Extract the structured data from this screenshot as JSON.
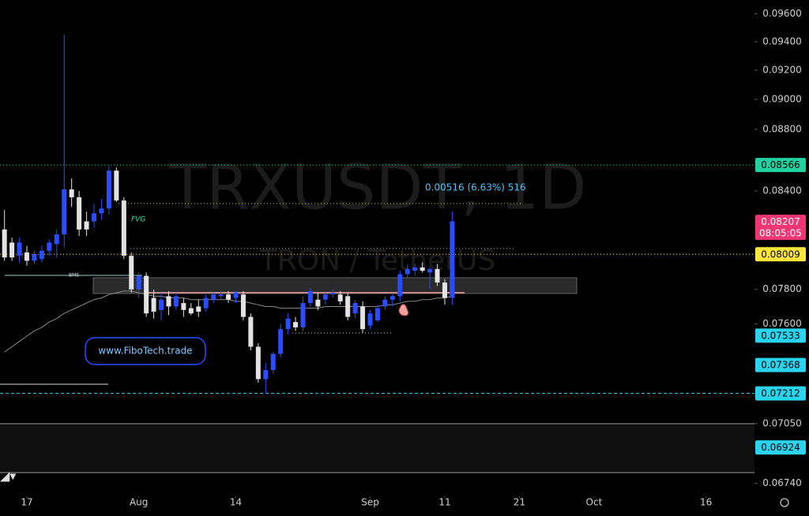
{
  "chart_data": {
    "type": "candlestick",
    "title": "TRXUSDT, 1D",
    "subtitle": "TRON / TetherUS",
    "log_scale": true,
    "grid": false,
    "up_color": "#2b4cff",
    "down_color": "#e3e3e3",
    "ylim": [
      0.0669,
      0.097
    ],
    "yticks": [
      {
        "value": 0.096,
        "label": "0.09600"
      },
      {
        "value": 0.094,
        "label": "0.09400"
      },
      {
        "value": 0.092,
        "label": "0.09200"
      },
      {
        "value": 0.09,
        "label": "0.09000"
      },
      {
        "value": 0.088,
        "label": "0.08800"
      },
      {
        "value": 0.084,
        "label": "0.08400"
      },
      {
        "value": 0.078,
        "label": "0.07800"
      },
      {
        "value": 0.076,
        "label": "0.07600"
      },
      {
        "value": 0.0705,
        "label": "0.07050"
      },
      {
        "value": 0.0674,
        "label": "0.06740"
      }
    ],
    "xlim": [
      -0.6,
      100.5
    ],
    "xticks": [
      {
        "value": 3,
        "label": "17"
      },
      {
        "value": 18,
        "label": "Aug"
      },
      {
        "value": 31,
        "label": "14"
      },
      {
        "value": 49,
        "label": "Sep"
      },
      {
        "value": 59,
        "label": "11"
      },
      {
        "value": 69,
        "label": "21"
      },
      {
        "value": 79,
        "label": "Oct"
      },
      {
        "value": 94,
        "label": "16"
      }
    ],
    "open": [
      0.0816,
      0.0808,
      0.08,
      0.0802,
      0.0797,
      0.0798,
      0.0803,
      0.0807,
      0.0813,
      0.0841,
      0.0836,
      0.0821,
      0.0821,
      0.0826,
      0.0829,
      0.0853,
      0.0834,
      0.08,
      0.078,
      0.0788,
      0.0775,
      0.0768,
      0.0776,
      0.077,
      0.0772,
      0.0769,
      0.077,
      0.0769,
      0.0774,
      0.0776,
      0.0777,
      0.0775,
      0.0777,
      0.0764,
      0.0747,
      0.0729,
      0.0734,
      0.0743,
      0.0757,
      0.0761,
      0.0758,
      0.0772,
      0.0774,
      0.0774,
      0.0777,
      0.0777,
      0.0776,
      0.0766,
      0.077,
      0.0759,
      0.0762,
      0.077,
      0.0774,
      0.0776,
      0.0789,
      0.0791,
      0.0793,
      0.079,
      0.0792,
      0.0784,
      0.0775
    ],
    "high": [
      0.0828,
      0.0811,
      0.0811,
      0.0806,
      0.0803,
      0.0806,
      0.081,
      0.0816,
      0.0945,
      0.0848,
      0.084,
      0.0827,
      0.0832,
      0.0835,
      0.0856,
      0.0855,
      0.0836,
      0.0802,
      0.079,
      0.079,
      0.078,
      0.0778,
      0.0779,
      0.0778,
      0.0775,
      0.0772,
      0.0774,
      0.0777,
      0.0778,
      0.0779,
      0.0779,
      0.0779,
      0.0779,
      0.0766,
      0.0749,
      0.0738,
      0.0744,
      0.076,
      0.0766,
      0.0764,
      0.0776,
      0.0781,
      0.0778,
      0.0778,
      0.078,
      0.0779,
      0.0778,
      0.0774,
      0.0773,
      0.0768,
      0.0771,
      0.0776,
      0.0777,
      0.0791,
      0.0795,
      0.0795,
      0.0796,
      0.0793,
      0.0795,
      0.0786,
      0.0827
    ],
    "low": [
      0.0797,
      0.0797,
      0.0796,
      0.0794,
      0.0795,
      0.0796,
      0.08,
      0.0799,
      0.0805,
      0.083,
      0.0812,
      0.0812,
      0.0817,
      0.0822,
      0.0825,
      0.0833,
      0.0798,
      0.0778,
      0.0775,
      0.0764,
      0.0763,
      0.0762,
      0.0765,
      0.0768,
      0.0764,
      0.0765,
      0.0764,
      0.0767,
      0.0772,
      0.0774,
      0.0772,
      0.0772,
      0.0762,
      0.0745,
      0.0727,
      0.0721,
      0.0732,
      0.0741,
      0.0754,
      0.0756,
      0.0756,
      0.077,
      0.0768,
      0.0771,
      0.0775,
      0.0771,
      0.0762,
      0.0763,
      0.0755,
      0.0757,
      0.0761,
      0.0768,
      0.077,
      0.0773,
      0.0787,
      0.0788,
      0.079,
      0.078,
      0.0782,
      0.0771,
      0.0771
    ],
    "close": [
      0.0799,
      0.0799,
      0.0808,
      0.0797,
      0.0801,
      0.0803,
      0.0808,
      0.0813,
      0.0841,
      0.0836,
      0.0816,
      0.0816,
      0.0826,
      0.0829,
      0.0853,
      0.0834,
      0.08,
      0.078,
      0.0788,
      0.0766,
      0.0767,
      0.0774,
      0.077,
      0.0776,
      0.0768,
      0.0766,
      0.0767,
      0.0775,
      0.0777,
      0.0777,
      0.0774,
      0.0778,
      0.0764,
      0.0747,
      0.0729,
      0.0734,
      0.0743,
      0.0757,
      0.0763,
      0.0758,
      0.0772,
      0.0779,
      0.077,
      0.0777,
      0.0778,
      0.0773,
      0.0764,
      0.0772,
      0.0757,
      0.0766,
      0.0769,
      0.0774,
      0.0776,
      0.0789,
      0.0792,
      0.0793,
      0.0791,
      0.0792,
      0.0784,
      0.0775,
      0.0821
    ],
    "overlays": [
      {
        "type": "line",
        "color": "#8a8a8a",
        "values": [
          0.0744,
          0.0747,
          0.075,
          0.0753,
          0.0756,
          0.0758,
          0.0761,
          0.0763,
          0.0766,
          0.0768,
          0.077,
          0.0772,
          0.0774,
          0.0775,
          0.0777,
          0.0778,
          0.0779,
          0.0779,
          0.0778,
          0.0777,
          0.0776,
          0.0776,
          0.0775,
          0.0775,
          0.0775,
          0.0774,
          0.0774,
          0.0774,
          0.0774,
          0.0774,
          0.0774,
          0.0773,
          0.0773,
          0.0772,
          0.0771,
          0.077,
          0.077,
          0.0769,
          0.0769,
          0.0769,
          0.0769,
          0.0769,
          0.0769,
          0.077,
          0.077,
          0.077,
          0.077,
          0.077,
          0.077,
          0.077,
          0.077,
          0.0771,
          0.0771,
          0.0772,
          0.0773,
          0.0773,
          0.0774,
          0.0774,
          0.0775,
          0.0775,
          0.0776
        ]
      }
    ],
    "levels": [
      {
        "value": 0.08566,
        "color": "#1fd3a0",
        "text_color": "#000",
        "line": "dotted"
      },
      {
        "value": 0.08207,
        "color": "#f23674",
        "text_color": "#fff",
        "countdown": "08:05:05"
      },
      {
        "value": 0.08009,
        "color": "#ffe83b",
        "text_color": "#000",
        "line": "dotted"
      },
      {
        "value": 0.07533,
        "color": "#2ad4ef",
        "text_color": "#000"
      },
      {
        "value": 0.07368,
        "color": "#2ad4ef",
        "text_color": "#000"
      },
      {
        "value": 0.07212,
        "color": "#2ad4ef",
        "text_color": "#000",
        "line": "dashed"
      },
      {
        "value": 0.06924,
        "color": "#2ad4ef",
        "text_color": "#000"
      }
    ],
    "annotations": [
      {
        "text": "FVG"
      },
      {
        "text": "BMS"
      },
      {
        "text": "0.00516 (6.63%) 516"
      },
      {
        "text": "www.FiboTech.trade"
      }
    ]
  }
}
